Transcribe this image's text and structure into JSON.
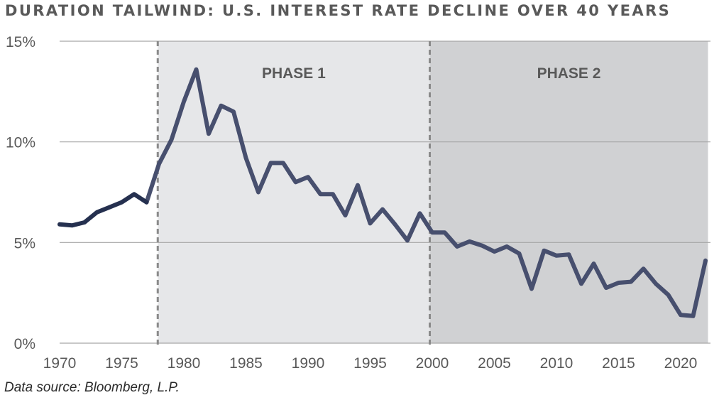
{
  "title": "DURATION TAILWIND: U.S. INTEREST RATE DECLINE OVER 40 YEARS",
  "source": "Data source: Bloomberg, L.P.",
  "colors": {
    "line_pre": "#25304f",
    "line_post": "#474f6e",
    "phase1_bg": "#e6e7e9",
    "phase2_bg": "#d0d1d3",
    "grid": "#a6a6a6",
    "divider": "#8a8a8a",
    "text": "#595959"
  },
  "chart_data": {
    "type": "line",
    "title": "DURATION TAILWIND: U.S. INTEREST RATE DECLINE OVER 40 YEARS",
    "xlabel": "",
    "ylabel": "",
    "xlim": [
      1970,
      2022
    ],
    "ylim": [
      0,
      15
    ],
    "x_ticks": [
      1970,
      1975,
      1980,
      1985,
      1990,
      1995,
      2000,
      2005,
      2010,
      2015,
      2020
    ],
    "x_tick_labels": [
      "1970",
      "1975",
      "1980",
      "1985",
      "1990",
      "1995",
      "2000",
      "2005",
      "2010",
      "2015",
      "2020"
    ],
    "y_ticks": [
      0,
      5,
      10,
      15
    ],
    "y_tick_labels": [
      "0%",
      "5%",
      "10%",
      "15%"
    ],
    "grid": "horizontal",
    "phases": [
      {
        "label": "PHASE 1",
        "start": 1977.9,
        "end": 1999.8
      },
      {
        "label": "PHASE 2",
        "start": 1999.8,
        "end": 2022.2
      }
    ],
    "series": [
      {
        "name": "U.S. interest rate",
        "x": [
          1970,
          1971,
          1972,
          1973,
          1974,
          1975,
          1976,
          1977,
          1978,
          1979,
          1980,
          1981,
          1982,
          1983,
          1984,
          1985,
          1986,
          1987,
          1988,
          1989,
          1990,
          1991,
          1992,
          1993,
          1994,
          1995,
          1996,
          1997,
          1998,
          1999,
          2000,
          2001,
          2002,
          2003,
          2004,
          2005,
          2006,
          2007,
          2008,
          2009,
          2010,
          2011,
          2012,
          2013,
          2014,
          2015,
          2016,
          2017,
          2018,
          2019,
          2020,
          2021,
          2022
        ],
        "y": [
          5.9,
          5.85,
          6.0,
          6.5,
          6.75,
          7.0,
          7.4,
          7.0,
          8.9,
          10.1,
          12.0,
          13.6,
          10.4,
          11.8,
          11.5,
          9.2,
          7.5,
          8.95,
          8.95,
          8.0,
          8.25,
          7.4,
          7.4,
          6.35,
          7.85,
          5.95,
          6.65,
          5.9,
          5.1,
          6.45,
          5.5,
          5.5,
          4.8,
          5.05,
          4.85,
          4.55,
          4.8,
          4.45,
          2.7,
          4.6,
          4.35,
          4.4,
          2.95,
          3.95,
          2.75,
          3.0,
          3.05,
          3.7,
          2.95,
          2.4,
          1.4,
          1.35,
          4.1
        ]
      }
    ]
  }
}
